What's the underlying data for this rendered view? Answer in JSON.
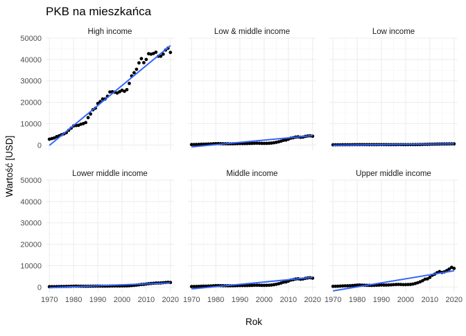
{
  "chart_data": {
    "type": "scatter",
    "title": "PKB na mieszkańca",
    "xlabel": "Rok",
    "ylabel": "Wartość [USD]",
    "xlim": [
      1968.5,
      2021.5
    ],
    "ylim": [
      -2500,
      50000
    ],
    "x_ticks": [
      1970,
      1980,
      1990,
      2000,
      2010,
      2020
    ],
    "x_tick_labels": [
      "1970",
      "1980",
      "1990",
      "2000",
      "2010",
      "2020"
    ],
    "y_ticks": [
      0,
      10000,
      20000,
      30000,
      40000,
      50000
    ],
    "y_tick_labels": [
      "0",
      "10000",
      "20000",
      "30000",
      "40000",
      "50000"
    ],
    "fit_line_color": "#3366ff",
    "point_color": "#000000",
    "years": [
      1970,
      1971,
      1972,
      1973,
      1974,
      1975,
      1976,
      1977,
      1978,
      1979,
      1980,
      1981,
      1982,
      1983,
      1984,
      1985,
      1986,
      1987,
      1988,
      1989,
      1990,
      1991,
      1992,
      1993,
      1994,
      1995,
      1996,
      1997,
      1998,
      1999,
      2000,
      2001,
      2002,
      2003,
      2004,
      2005,
      2006,
      2007,
      2008,
      2009,
      2010,
      2011,
      2012,
      2013,
      2014,
      2015,
      2016,
      2017,
      2018,
      2019,
      2020
    ],
    "panels": [
      {
        "name": "High income",
        "values": [
          2700,
          3000,
          3300,
          3900,
          4300,
          4800,
          5200,
          5800,
          6900,
          7900,
          8900,
          9100,
          9200,
          9700,
          10000,
          10500,
          12800,
          14500,
          16500,
          17200,
          19400,
          20300,
          21500,
          21500,
          22800,
          24800,
          24900,
          24700,
          24300,
          24900,
          25600,
          25100,
          25900,
          28800,
          32300,
          33800,
          35400,
          38400,
          40400,
          38500,
          40000,
          42700,
          42500,
          42800,
          43400,
          41500,
          41500,
          42500,
          44400,
          45300,
          43300
        ],
        "fit": [
          {
            "x": 1970,
            "y": -200
          },
          {
            "x": 2020,
            "y": 46500
          }
        ]
      },
      {
        "name": "Low & middle income",
        "values": [
          200,
          220,
          240,
          290,
          350,
          380,
          400,
          430,
          480,
          560,
          620,
          640,
          610,
          580,
          570,
          560,
          550,
          570,
          600,
          640,
          680,
          660,
          660,
          670,
          710,
          760,
          790,
          830,
          800,
          760,
          750,
          770,
          800,
          900,
          1050,
          1250,
          1500,
          1800,
          2200,
          2300,
          2700,
          3200,
          3400,
          3700,
          3800,
          3600,
          3700,
          4000,
          4200,
          4300,
          4100
        ],
        "fit": [
          {
            "x": 1970,
            "y": -900
          },
          {
            "x": 2020,
            "y": 4400
          }
        ]
      },
      {
        "name": "Low income",
        "values": [
          80,
          85,
          90,
          100,
          110,
          120,
          125,
          130,
          140,
          150,
          170,
          175,
          175,
          170,
          165,
          160,
          165,
          170,
          175,
          180,
          185,
          180,
          175,
          170,
          165,
          170,
          175,
          180,
          180,
          175,
          175,
          180,
          185,
          190,
          200,
          215,
          235,
          260,
          300,
          320,
          350,
          380,
          410,
          430,
          460,
          470,
          480,
          500,
          520,
          540,
          520
        ],
        "fit": [
          {
            "x": 1970,
            "y": -150
          },
          {
            "x": 2020,
            "y": 580
          }
        ]
      },
      {
        "name": "Lower middle income",
        "values": [
          150,
          160,
          170,
          190,
          220,
          240,
          250,
          270,
          300,
          330,
          380,
          390,
          380,
          370,
          360,
          360,
          370,
          380,
          400,
          420,
          440,
          420,
          410,
          410,
          420,
          450,
          480,
          500,
          490,
          480,
          500,
          520,
          540,
          600,
          680,
          780,
          900,
          1050,
          1200,
          1250,
          1400,
          1550,
          1650,
          1750,
          1850,
          1850,
          1900,
          2000,
          2100,
          2200,
          2100
        ],
        "fit": [
          {
            "x": 1970,
            "y": -300
          },
          {
            "x": 2020,
            "y": 1900
          }
        ]
      },
      {
        "name": "Middle income",
        "values": [
          220,
          240,
          260,
          300,
          360,
          390,
          410,
          440,
          490,
          560,
          640,
          660,
          630,
          600,
          590,
          580,
          570,
          590,
          620,
          660,
          700,
          680,
          680,
          690,
          730,
          780,
          810,
          850,
          820,
          780,
          780,
          800,
          830,
          930,
          1080,
          1280,
          1540,
          1850,
          2250,
          2350,
          2750,
          3250,
          3450,
          3750,
          3850,
          3650,
          3750,
          4050,
          4250,
          4350,
          4150
        ],
        "fit": [
          {
            "x": 1970,
            "y": -900
          },
          {
            "x": 2020,
            "y": 4500
          }
        ]
      },
      {
        "name": "Upper middle income",
        "values": [
          300,
          330,
          360,
          420,
          500,
          550,
          570,
          610,
          680,
          780,
          900,
          920,
          870,
          820,
          790,
          780,
          760,
          790,
          830,
          890,
          950,
          930,
          930,
          960,
          1020,
          1110,
          1160,
          1220,
          1180,
          1110,
          1120,
          1180,
          1210,
          1390,
          1650,
          2000,
          2430,
          2960,
          3650,
          3800,
          4500,
          5500,
          6000,
          6700,
          7200,
          6800,
          7100,
          7700,
          8400,
          9200,
          8700
        ],
        "fit": [
          {
            "x": 1970,
            "y": -1800
          },
          {
            "x": 2020,
            "y": 7600
          }
        ]
      }
    ]
  }
}
